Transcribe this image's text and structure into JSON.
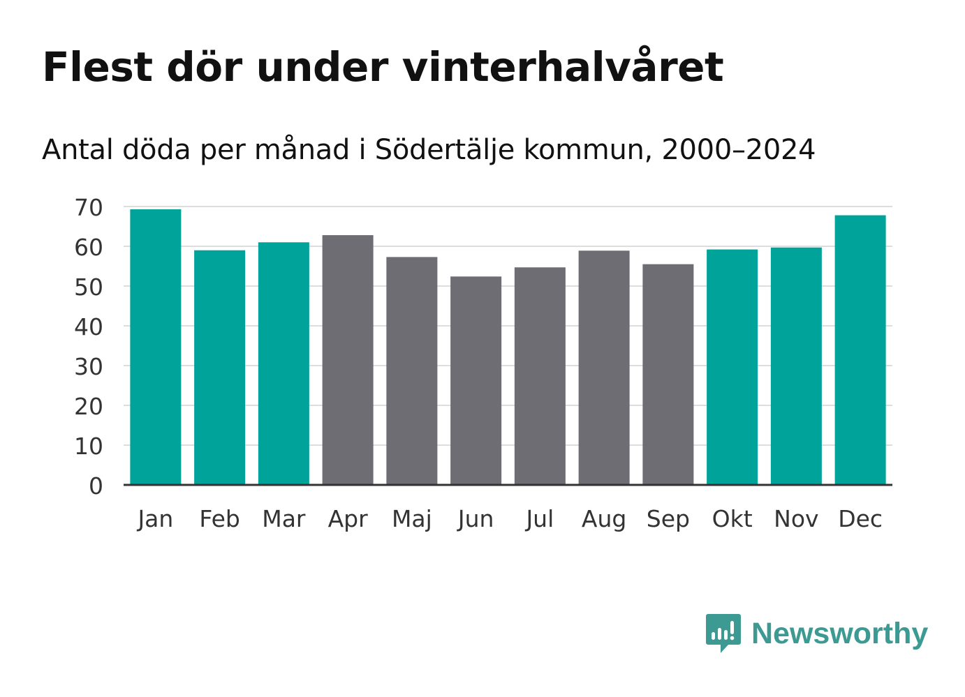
{
  "colors": {
    "winter": "#00a39a",
    "summer": "#6e6d73",
    "grid": "#dddddd",
    "axis": "#333333",
    "text": "#111111",
    "brand": "#3c9a93"
  },
  "brand": {
    "name": "Newsworthy",
    "icon": "chart-speech-bubble-icon"
  },
  "chart_data": {
    "type": "bar",
    "title": "Flest dör under vinterhalvåret",
    "subtitle": "Antal döda per månad i Södertälje kommun, 2000–2024",
    "xlabel": "",
    "ylabel": "",
    "ylim": [
      0,
      70
    ],
    "yticks": [
      0,
      10,
      20,
      30,
      40,
      50,
      60,
      70
    ],
    "grid": true,
    "categories": [
      "Jan",
      "Feb",
      "Mar",
      "Apr",
      "Maj",
      "Jun",
      "Jul",
      "Aug",
      "Sep",
      "Okt",
      "Nov",
      "Dec"
    ],
    "values": [
      69.3,
      59.0,
      61.0,
      62.8,
      57.3,
      52.4,
      54.7,
      58.9,
      55.5,
      59.2,
      59.7,
      67.8
    ],
    "groups": [
      "winter",
      "winter",
      "winter",
      "summer",
      "summer",
      "summer",
      "summer",
      "summer",
      "summer",
      "winter",
      "winter",
      "winter"
    ]
  }
}
